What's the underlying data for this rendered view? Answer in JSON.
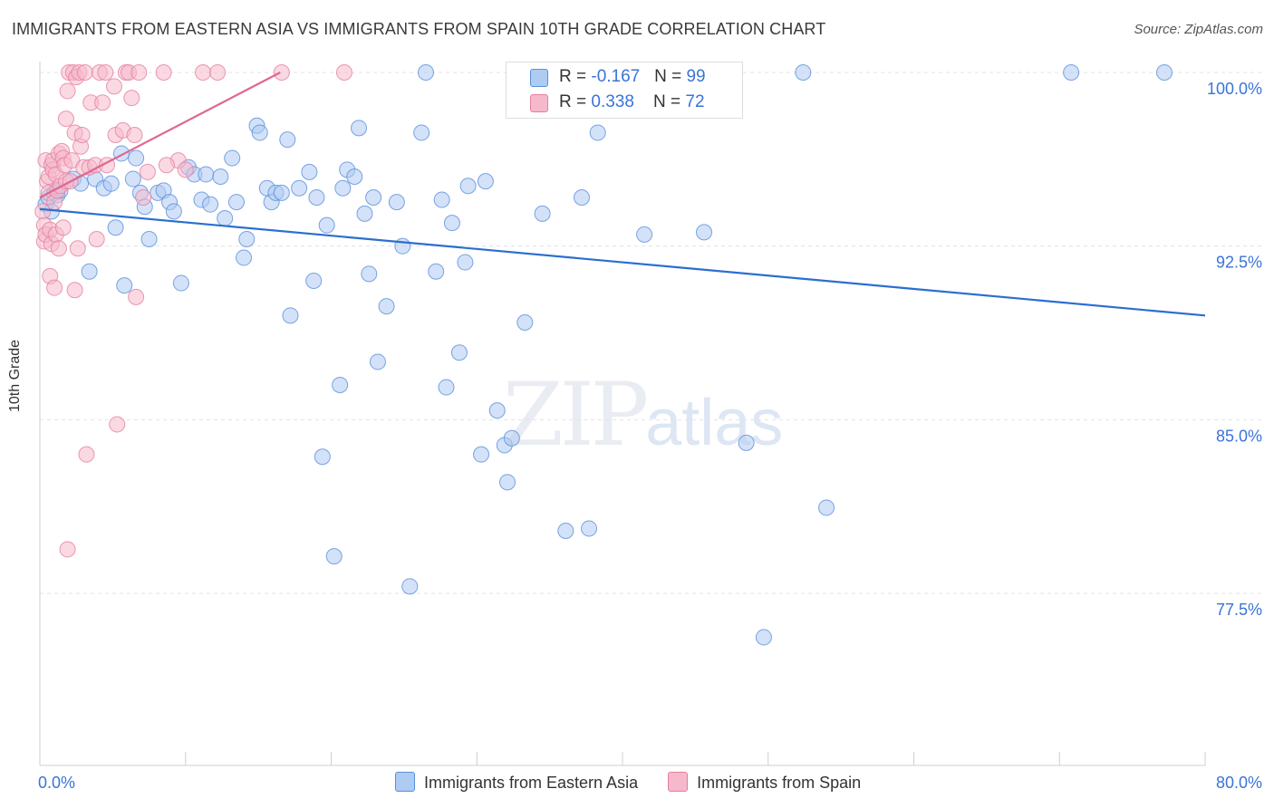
{
  "title": "IMMIGRANTS FROM EASTERN ASIA VS IMMIGRANTS FROM SPAIN 10TH GRADE CORRELATION CHART",
  "source": "Source: ZipAtlas.com",
  "watermark": {
    "zip": "ZIP",
    "atlas": "atlas"
  },
  "legend_top": {
    "rows": [
      {
        "r_label": "R = ",
        "r_value": "-0.167",
        "n_label": "N = ",
        "n_value": "99"
      },
      {
        "r_label": "R = ",
        "r_value": "0.338",
        "n_label": "N = ",
        "n_value": "72"
      }
    ]
  },
  "colors": {
    "blue_fill": "#aecbf2",
    "blue_stroke": "#5a8fdc",
    "blue_line": "#2a6fd0",
    "pink_fill": "#f6b9cc",
    "pink_stroke": "#e57fa0",
    "pink_line": "#e06690",
    "tick_label": "#3a74d8",
    "grid": "#e3e3e3"
  },
  "chart_data": {
    "type": "scatter",
    "title": "IMMIGRANTS FROM EASTERN ASIA VS IMMIGRANTS FROM SPAIN 10TH GRADE CORRELATION CHART",
    "xlabel": "",
    "ylabel": "10th Grade",
    "xlim": [
      0,
      80
    ],
    "ylim": [
      70,
      101
    ],
    "x_tick_labels": [
      "0.0%",
      "80.0%"
    ],
    "y_ticks": [
      77.5,
      85.0,
      92.5,
      100.0
    ],
    "y_tick_labels": [
      "77.5%",
      "85.0%",
      "92.5%",
      "100.0%"
    ],
    "grid": true,
    "legend_position": "bottom",
    "series": [
      {
        "name": "Immigrants from Eastern Asia",
        "color": "#aecbf2",
        "r": -0.167,
        "n": 99,
        "trend": {
          "x": [
            0,
            80
          ],
          "y": [
            94.1,
            89.5
          ]
        },
        "points": [
          [
            0.4,
            94.3
          ],
          [
            0.6,
            94.6
          ],
          [
            0.8,
            94.0
          ],
          [
            1.0,
            94.8
          ],
          [
            1.2,
            94.7
          ],
          [
            1.4,
            94.9
          ],
          [
            2.3,
            95.4
          ],
          [
            2.8,
            95.2
          ],
          [
            3.4,
            91.4
          ],
          [
            3.8,
            95.4
          ],
          [
            4.4,
            95.0
          ],
          [
            4.9,
            95.2
          ],
          [
            5.2,
            93.3
          ],
          [
            5.6,
            96.5
          ],
          [
            5.8,
            90.8
          ],
          [
            6.4,
            95.4
          ],
          [
            6.6,
            96.3
          ],
          [
            6.9,
            94.8
          ],
          [
            7.2,
            94.2
          ],
          [
            7.5,
            92.8
          ],
          [
            8.1,
            94.8
          ],
          [
            8.5,
            94.9
          ],
          [
            8.9,
            94.4
          ],
          [
            9.2,
            94.0
          ],
          [
            9.7,
            90.9
          ],
          [
            10.2,
            95.9
          ],
          [
            10.6,
            95.6
          ],
          [
            11.1,
            94.5
          ],
          [
            11.4,
            95.6
          ],
          [
            11.7,
            94.3
          ],
          [
            12.4,
            95.5
          ],
          [
            12.7,
            93.7
          ],
          [
            13.2,
            96.3
          ],
          [
            13.5,
            94.4
          ],
          [
            14.0,
            92.0
          ],
          [
            14.2,
            92.8
          ],
          [
            14.9,
            97.7
          ],
          [
            15.1,
            97.4
          ],
          [
            15.6,
            95.0
          ],
          [
            15.9,
            94.4
          ],
          [
            16.2,
            94.8
          ],
          [
            16.6,
            94.8
          ],
          [
            17.0,
            97.1
          ],
          [
            17.2,
            89.5
          ],
          [
            17.8,
            95.0
          ],
          [
            18.5,
            95.7
          ],
          [
            18.8,
            91.0
          ],
          [
            19.0,
            94.6
          ],
          [
            19.4,
            83.4
          ],
          [
            19.7,
            93.4
          ],
          [
            20.2,
            79.1
          ],
          [
            20.6,
            86.5
          ],
          [
            20.8,
            95.0
          ],
          [
            21.1,
            95.8
          ],
          [
            21.6,
            95.5
          ],
          [
            21.9,
            97.6
          ],
          [
            22.3,
            93.9
          ],
          [
            22.6,
            91.3
          ],
          [
            22.9,
            94.6
          ],
          [
            23.2,
            87.5
          ],
          [
            23.8,
            89.9
          ],
          [
            24.5,
            94.4
          ],
          [
            24.9,
            92.5
          ],
          [
            25.4,
            77.8
          ],
          [
            26.2,
            97.4
          ],
          [
            26.5,
            100.0
          ],
          [
            27.2,
            91.4
          ],
          [
            27.6,
            94.5
          ],
          [
            27.9,
            86.4
          ],
          [
            28.3,
            93.5
          ],
          [
            28.8,
            87.9
          ],
          [
            29.2,
            91.8
          ],
          [
            29.4,
            95.1
          ],
          [
            30.3,
            83.5
          ],
          [
            30.6,
            95.3
          ],
          [
            31.4,
            85.4
          ],
          [
            31.9,
            83.9
          ],
          [
            32.1,
            82.3
          ],
          [
            32.4,
            84.2
          ],
          [
            33.3,
            89.2
          ],
          [
            34.5,
            93.9
          ],
          [
            36.1,
            80.2
          ],
          [
            37.2,
            94.6
          ],
          [
            37.7,
            80.3
          ],
          [
            38.3,
            97.4
          ],
          [
            41.5,
            93.0
          ],
          [
            42.5,
            100.0
          ],
          [
            45.6,
            93.1
          ],
          [
            48.5,
            84.0
          ],
          [
            52.4,
            100.0
          ],
          [
            54.0,
            81.2
          ],
          [
            49.7,
            75.6
          ],
          [
            70.8,
            100.0
          ],
          [
            77.2,
            100.0
          ],
          [
            36.8,
            100.0
          ]
        ]
      },
      {
        "name": "Immigrants from Spain",
        "color": "#f6b9cc",
        "r": 0.338,
        "n": 72,
        "trend": {
          "x": [
            0,
            16.5
          ],
          "y": [
            94.6,
            100.0
          ]
        },
        "points": [
          [
            0.2,
            94.0
          ],
          [
            0.3,
            93.4
          ],
          [
            0.3,
            92.7
          ],
          [
            0.4,
            93.0
          ],
          [
            0.4,
            96.2
          ],
          [
            0.5,
            95.3
          ],
          [
            0.6,
            95.5
          ],
          [
            0.6,
            94.8
          ],
          [
            0.7,
            91.2
          ],
          [
            0.7,
            93.2
          ],
          [
            0.8,
            96.0
          ],
          [
            0.8,
            92.6
          ],
          [
            0.9,
            95.8
          ],
          [
            0.9,
            96.2
          ],
          [
            1.0,
            94.4
          ],
          [
            1.0,
            90.7
          ],
          [
            1.1,
            95.6
          ],
          [
            1.1,
            93.0
          ],
          [
            1.2,
            94.9
          ],
          [
            1.3,
            96.5
          ],
          [
            1.3,
            92.4
          ],
          [
            1.4,
            95.1
          ],
          [
            1.5,
            96.6
          ],
          [
            1.6,
            96.3
          ],
          [
            1.6,
            93.3
          ],
          [
            1.7,
            96.0
          ],
          [
            1.8,
            98.0
          ],
          [
            1.8,
            95.3
          ],
          [
            1.9,
            99.2
          ],
          [
            1.9,
            79.4
          ],
          [
            2.0,
            100.0
          ],
          [
            2.1,
            95.3
          ],
          [
            2.2,
            96.2
          ],
          [
            2.3,
            100.0
          ],
          [
            2.4,
            97.4
          ],
          [
            2.4,
            90.6
          ],
          [
            2.5,
            99.8
          ],
          [
            2.6,
            92.4
          ],
          [
            2.7,
            100.0
          ],
          [
            2.8,
            96.8
          ],
          [
            2.9,
            97.3
          ],
          [
            3.0,
            95.9
          ],
          [
            3.1,
            100.0
          ],
          [
            3.2,
            83.5
          ],
          [
            3.4,
            95.9
          ],
          [
            3.5,
            98.7
          ],
          [
            3.8,
            96.0
          ],
          [
            3.9,
            92.8
          ],
          [
            4.1,
            100.0
          ],
          [
            4.3,
            98.7
          ],
          [
            4.5,
            100.0
          ],
          [
            4.6,
            96.0
          ],
          [
            5.1,
            99.4
          ],
          [
            5.2,
            97.3
          ],
          [
            5.3,
            84.8
          ],
          [
            5.7,
            97.5
          ],
          [
            5.9,
            100.0
          ],
          [
            6.1,
            100.0
          ],
          [
            6.3,
            98.9
          ],
          [
            6.5,
            97.3
          ],
          [
            6.6,
            90.3
          ],
          [
            6.8,
            100.0
          ],
          [
            7.1,
            94.6
          ],
          [
            7.4,
            95.7
          ],
          [
            8.5,
            100.0
          ],
          [
            9.5,
            96.2
          ],
          [
            10.0,
            95.8
          ],
          [
            11.2,
            100.0
          ],
          [
            12.2,
            100.0
          ],
          [
            16.6,
            100.0
          ],
          [
            20.9,
            100.0
          ],
          [
            8.7,
            96.0
          ]
        ]
      }
    ]
  },
  "legend_bottom": [
    "Immigrants from Eastern Asia",
    "Immigrants from Spain"
  ]
}
